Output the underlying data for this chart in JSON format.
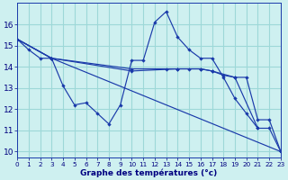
{
  "bg_color": "#cef0f0",
  "line_color": "#1a3aaa",
  "grid_color": "#9dd8d8",
  "xlabel": "Graphe des températures (°c)",
  "xlim": [
    0,
    23
  ],
  "ylim": [
    9.7,
    17.0
  ],
  "xtick_vals": [
    0,
    1,
    2,
    3,
    4,
    5,
    6,
    7,
    8,
    9,
    10,
    11,
    12,
    13,
    14,
    15,
    16,
    17,
    18,
    19,
    20,
    21,
    22,
    23
  ],
  "ytick_vals": [
    10,
    11,
    12,
    13,
    14,
    15,
    16
  ],
  "series": [
    {
      "x": [
        0,
        1,
        2,
        3,
        4,
        5,
        6,
        7,
        8,
        9,
        10,
        11,
        12,
        13,
        14,
        15,
        16,
        17,
        18,
        19,
        20,
        21
      ],
      "y": [
        15.3,
        14.8,
        14.4,
        14.4,
        13.1,
        12.2,
        12.3,
        11.8,
        11.3,
        12.2,
        14.3,
        14.3,
        16.1,
        16.6,
        15.4,
        14.8,
        14.4,
        14.4,
        13.5,
        12.5,
        11.8,
        11.1
      ]
    },
    {
      "x": [
        0,
        3,
        23
      ],
      "y": [
        15.3,
        14.4,
        10.0
      ]
    },
    {
      "x": [
        0,
        3,
        10,
        14,
        16,
        17,
        19,
        21,
        22,
        23
      ],
      "y": [
        15.3,
        14.4,
        13.8,
        13.9,
        13.9,
        13.8,
        13.5,
        11.1,
        11.1,
        10.0
      ]
    },
    {
      "x": [
        0,
        3,
        10,
        13,
        14,
        15,
        16,
        17,
        18,
        19,
        20,
        21,
        22,
        23
      ],
      "y": [
        15.3,
        14.4,
        13.9,
        13.9,
        13.9,
        13.9,
        13.9,
        13.8,
        13.6,
        13.5,
        13.5,
        11.5,
        11.5,
        10.0
      ]
    }
  ]
}
